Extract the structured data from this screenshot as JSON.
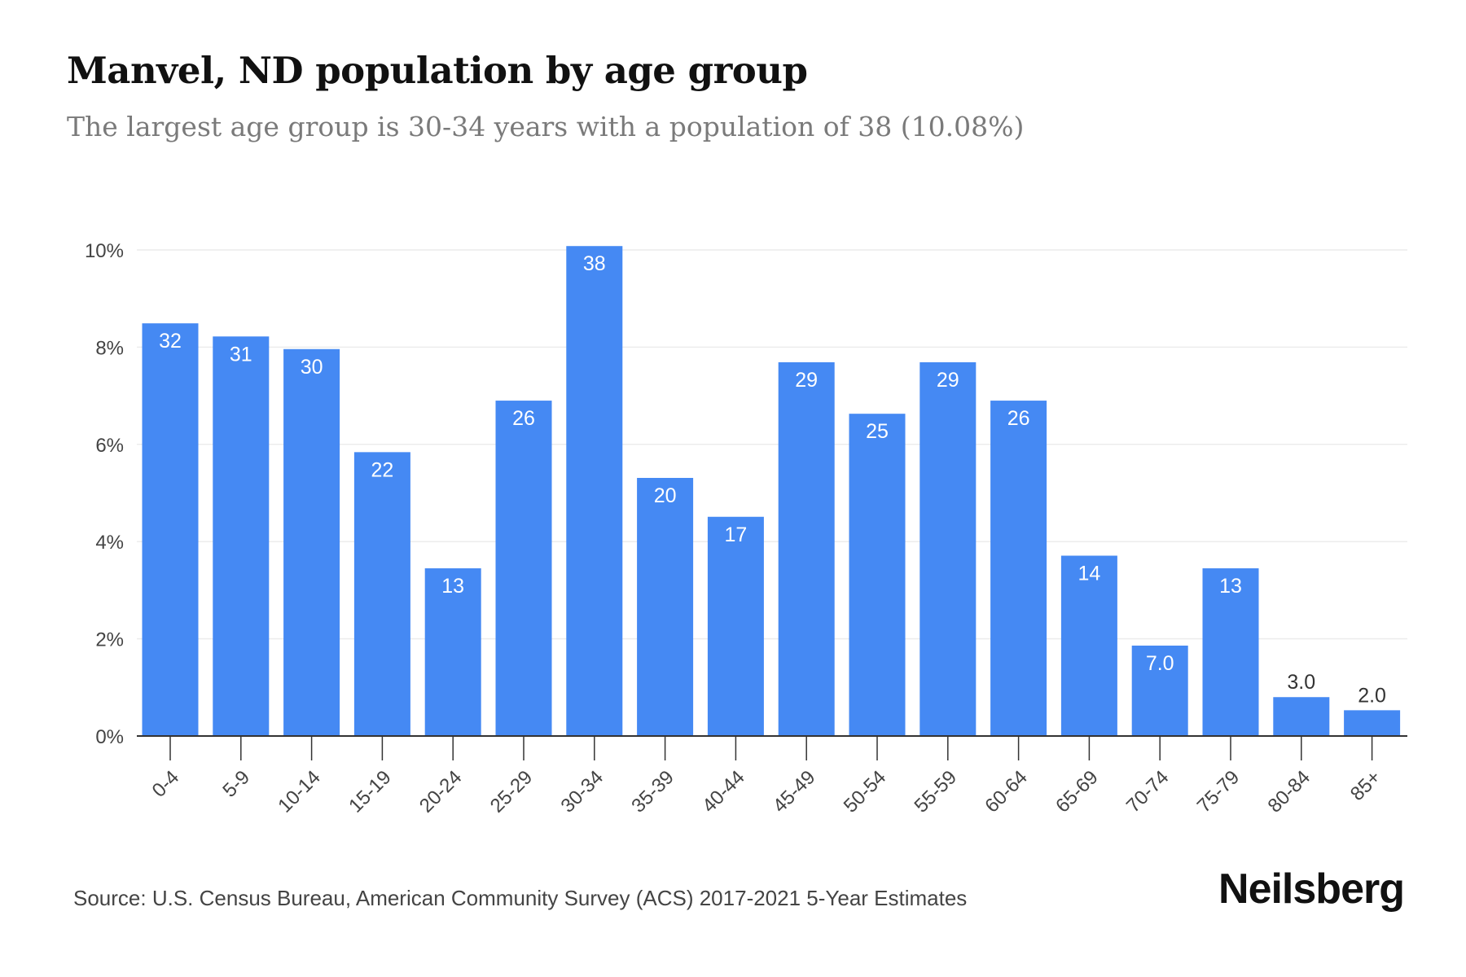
{
  "header": {
    "title": "Manvel, ND population by age group",
    "subtitle": "The largest age group is 30-34 years with a population of 38 (10.08%)"
  },
  "footer": {
    "source": "Source: U.S. Census Bureau, American Community Survey (ACS) 2017-2021 5-Year Estimates",
    "brand": "Neilsberg"
  },
  "colors": {
    "bar": "#4589f3",
    "label_inside": "#ffffff",
    "label_outside": "#333333",
    "grid": "#ececec",
    "axis": "#333333",
    "tick_text": "#444444"
  },
  "chart_data": {
    "type": "bar",
    "title": "Manvel, ND population by age group",
    "subtitle": "The largest age group is 30-34 years with a population of 38 (10.08%)",
    "categories": [
      "0-4",
      "5-9",
      "10-14",
      "15-19",
      "20-24",
      "25-29",
      "30-34",
      "35-39",
      "40-44",
      "45-49",
      "50-54",
      "55-59",
      "60-64",
      "65-69",
      "70-74",
      "75-79",
      "80-84",
      "85+"
    ],
    "values_percent": [
      8.49,
      8.22,
      7.96,
      5.84,
      3.45,
      6.9,
      10.08,
      5.31,
      4.51,
      7.69,
      6.63,
      7.69,
      6.9,
      3.71,
      1.86,
      3.45,
      0.8,
      0.53
    ],
    "data_labels": [
      "32",
      "31",
      "30",
      "22",
      "13",
      "26",
      "38",
      "20",
      "17",
      "29",
      "25",
      "29",
      "26",
      "14",
      "7.0",
      "13",
      "3.0",
      "2.0"
    ],
    "ylim": [
      0,
      10
    ],
    "yticks": [
      0,
      2,
      4,
      6,
      8,
      10
    ],
    "ytick_labels": [
      "0%",
      "2%",
      "4%",
      "6%",
      "8%",
      "10%"
    ],
    "xlabel": "",
    "ylabel": "",
    "grid": true,
    "legend": "none"
  }
}
